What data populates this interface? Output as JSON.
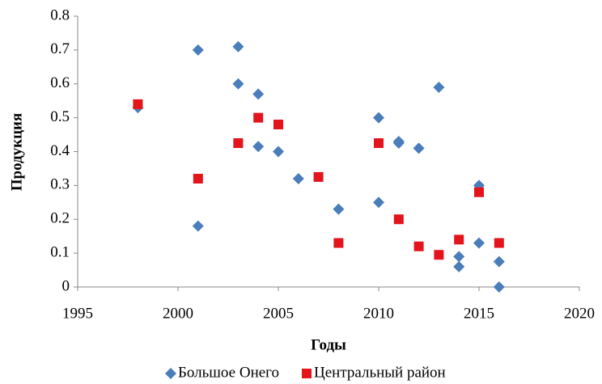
{
  "chart_data": {
    "type": "scatter",
    "x_label": "Годы",
    "y_label": "Продукция",
    "xlim": [
      1995,
      2020
    ],
    "xticks": [
      1995,
      2000,
      2005,
      2010,
      2015,
      2020
    ],
    "ylim": [
      0,
      0.8
    ],
    "yticks": [
      0,
      0.1,
      0.2,
      0.3,
      0.4,
      0.5,
      0.6,
      0.7,
      0.8
    ],
    "grid": false,
    "legend": "bottom",
    "series": [
      {
        "name": "Большое Онего",
        "color": "#4a7ebb",
        "marker": "diamond",
        "x": [
          1998,
          2001,
          2001,
          2003,
          2003,
          2004,
          2004,
          2005,
          2006,
          2008,
          2010,
          2010,
          2011,
          2011,
          2012,
          2013,
          2014,
          2014,
          2015,
          2015,
          2016,
          2016
        ],
        "values": [
          0.53,
          0.7,
          0.18,
          0.71,
          0.6,
          0.57,
          0.415,
          0.4,
          0.32,
          0.23,
          0.5,
          0.25,
          0.43,
          0.425,
          0.41,
          0.59,
          0.09,
          0.06,
          0.3,
          0.13,
          0.075,
          0.0
        ]
      },
      {
        "name": "Центральный район",
        "color": "#e3141b",
        "marker": "square",
        "x": [
          1998,
          2001,
          2003,
          2004,
          2005,
          2007,
          2008,
          2010,
          2011,
          2012,
          2013,
          2014,
          2015,
          2016
        ],
        "values": [
          0.54,
          0.32,
          0.425,
          0.5,
          0.48,
          0.325,
          0.13,
          0.425,
          0.2,
          0.12,
          0.095,
          0.14,
          0.28,
          0.13
        ]
      }
    ]
  }
}
